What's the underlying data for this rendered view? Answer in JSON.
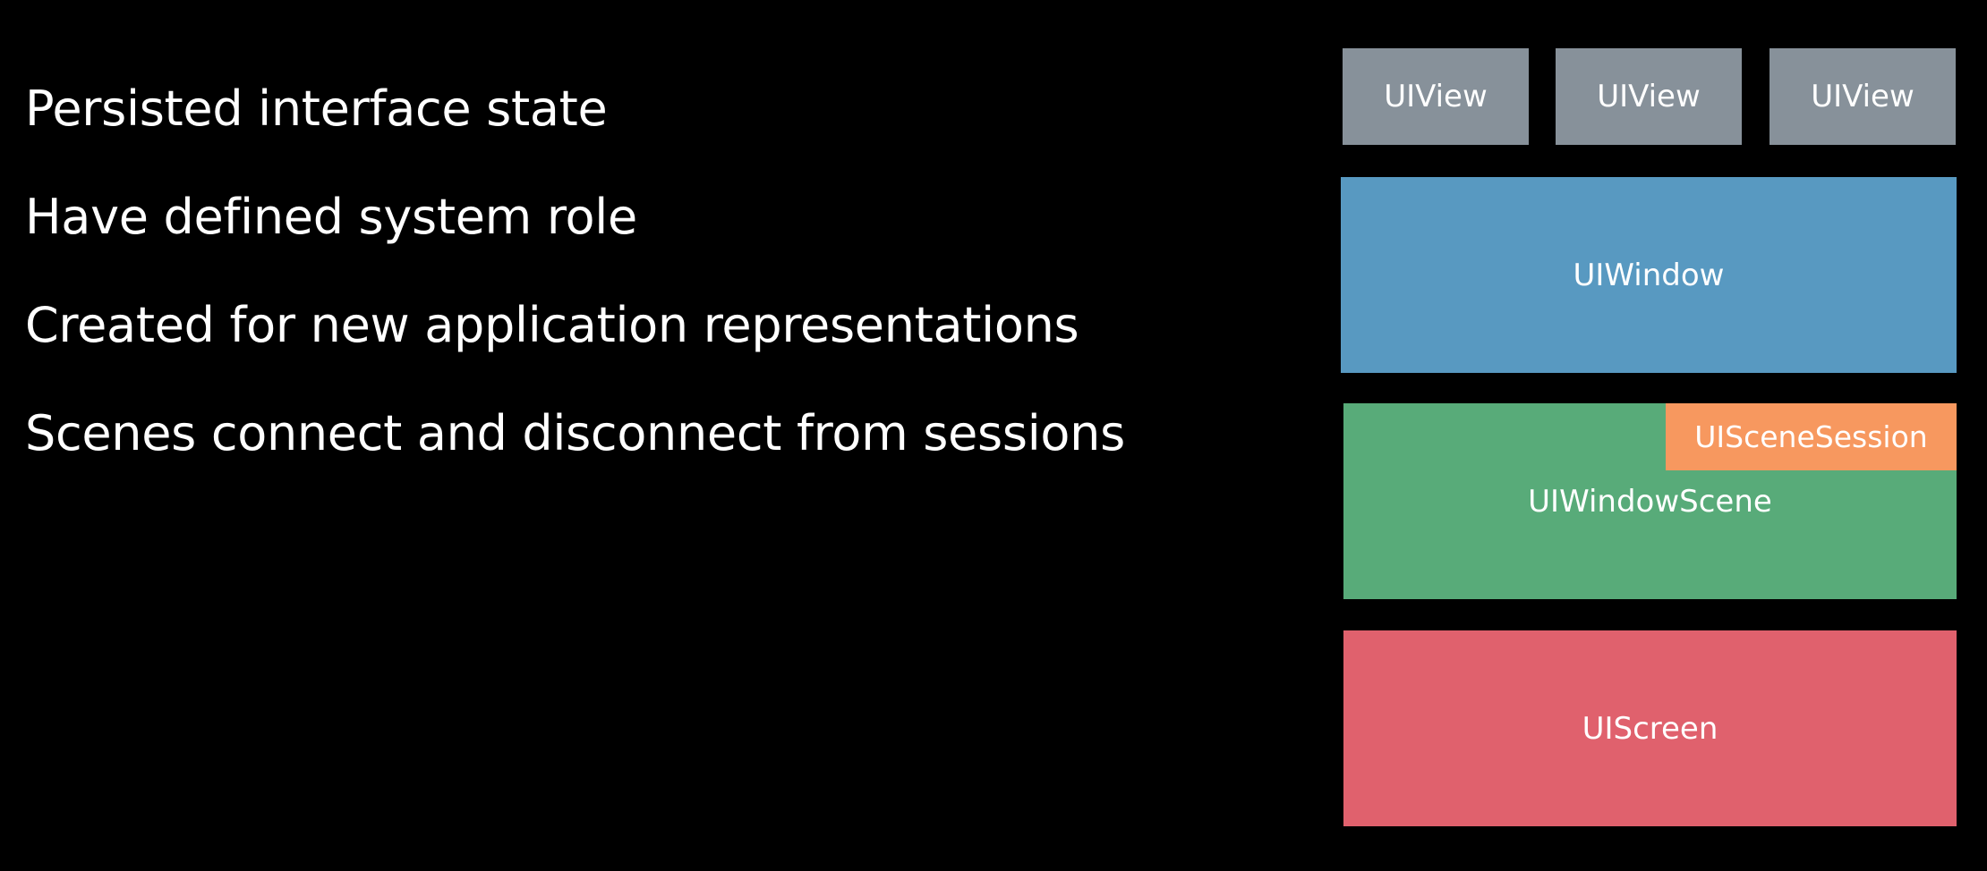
{
  "bullets": [
    "Persisted interface state",
    "Have defined system role",
    "Created for new application representations",
    "Scenes connect and disconnect from sessions"
  ],
  "diagram": {
    "views": [
      "UIView",
      "UIView",
      "UIView"
    ],
    "window": "UIWindow",
    "window_scene": "UIWindowScene",
    "scene_session": "UISceneSession",
    "screen": "UIScreen"
  },
  "colors": {
    "background": "#000000",
    "view": "#87919a",
    "window": "#5899c1",
    "window_scene": "#58ab79",
    "scene_session": "#f7985f",
    "screen": "#e0616d"
  }
}
